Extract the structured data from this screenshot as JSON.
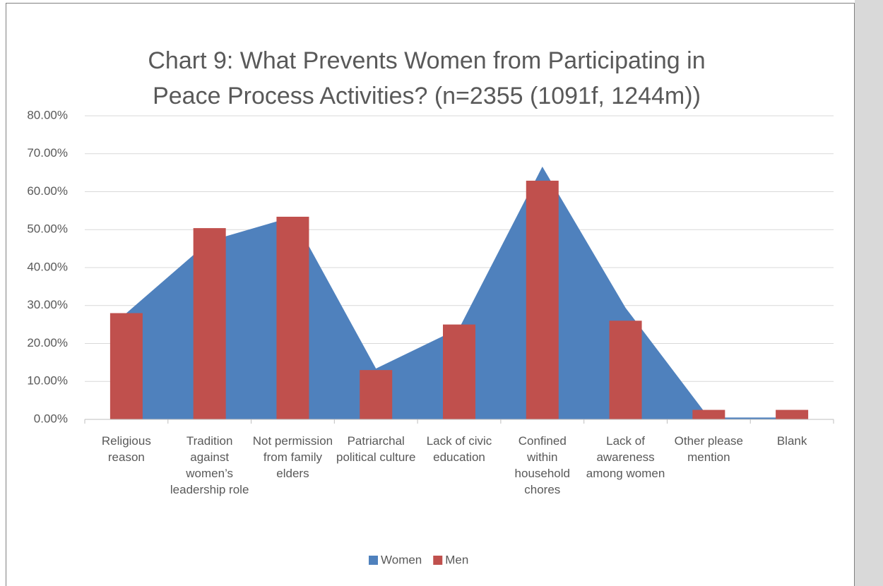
{
  "chart_data": {
    "type": "area_bar",
    "title": "Chart 9: What Prevents Women from Participating in Peace Process Activities? (n=2355 (1091f, 1244m))",
    "categories": [
      "Religious reason",
      "Tradition against women’s leadership role",
      "Not permission from family elders",
      "Patriarchal political culture",
      "Lack of civic education",
      "Confined within household chores",
      "Lack of awareness among women",
      "Other please mention",
      "Blank"
    ],
    "series": [
      {
        "name": "Women",
        "color": "#4f81bd",
        "kind": "area",
        "values": [
          28,
          47,
          53.4,
          13.4,
          24,
          66.6,
          29.4,
          0.5,
          0.5
        ]
      },
      {
        "name": "Men",
        "color": "#c0504d",
        "kind": "bar",
        "values": [
          28,
          50.4,
          53.4,
          13,
          25,
          62.9,
          26,
          2.5,
          2.5
        ]
      }
    ],
    "ylim": [
      0,
      80
    ],
    "yticks": [
      {
        "value": 0,
        "label": "0.00%"
      },
      {
        "value": 10,
        "label": "10.00%"
      },
      {
        "value": 20,
        "label": "20.00%"
      },
      {
        "value": 30,
        "label": "30.00%"
      },
      {
        "value": 40,
        "label": "40.00%"
      },
      {
        "value": 50,
        "label": "50.00%"
      },
      {
        "value": 60,
        "label": "60.00%"
      },
      {
        "value": 70,
        "label": "70.00%"
      },
      {
        "value": 80,
        "label": "80.00%"
      }
    ],
    "grid": true,
    "legend": "bottom"
  }
}
